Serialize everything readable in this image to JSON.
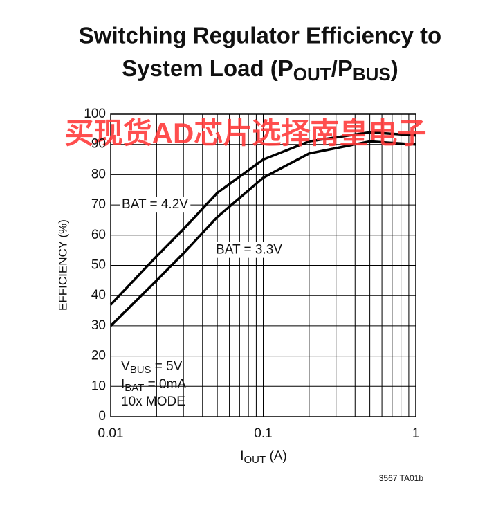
{
  "chart_data": {
    "type": "line",
    "title": [
      "Switching Regulator Efficiency to",
      "System Load (P",
      "OUT",
      "/P",
      "BUS",
      ")"
    ],
    "xlabel": [
      "I",
      "OUT",
      " (A)"
    ],
    "ylabel": "EFFICIENCY (%)",
    "x": [
      0.01,
      0.02,
      0.03,
      0.05,
      0.1,
      0.2,
      0.5,
      1
    ],
    "series": [
      {
        "name": "BAT = 4.2V",
        "color": "#000000",
        "values": [
          37,
          53,
          62,
          74,
          85,
          91,
          94,
          93
        ]
      },
      {
        "name": "BAT = 3.3V",
        "color": "#000000",
        "values": [
          30,
          45,
          54,
          66,
          79,
          87,
          91,
          90
        ]
      }
    ],
    "xscale": "log",
    "xlim": [
      0.01,
      1
    ],
    "xticks": [
      0.01,
      0.1,
      1
    ],
    "xminor_ticks": [
      0.02,
      0.03,
      0.04,
      0.05,
      0.06,
      0.07,
      0.08,
      0.09,
      0.2,
      0.3,
      0.4,
      0.5,
      0.6,
      0.7,
      0.8,
      0.9
    ],
    "ylim": [
      0,
      100
    ],
    "yticks": [
      0,
      10,
      20,
      30,
      40,
      50,
      60,
      70,
      80,
      90,
      100
    ],
    "grid": true,
    "annotations": [
      [
        "V",
        "BUS",
        " = 5V"
      ],
      [
        "I",
        "BAT",
        " = 0mA"
      ],
      [
        "10x MODE"
      ]
    ],
    "footnote": "3567 TA01b",
    "watermark": "买现货AD芯片选择南皇电子"
  }
}
